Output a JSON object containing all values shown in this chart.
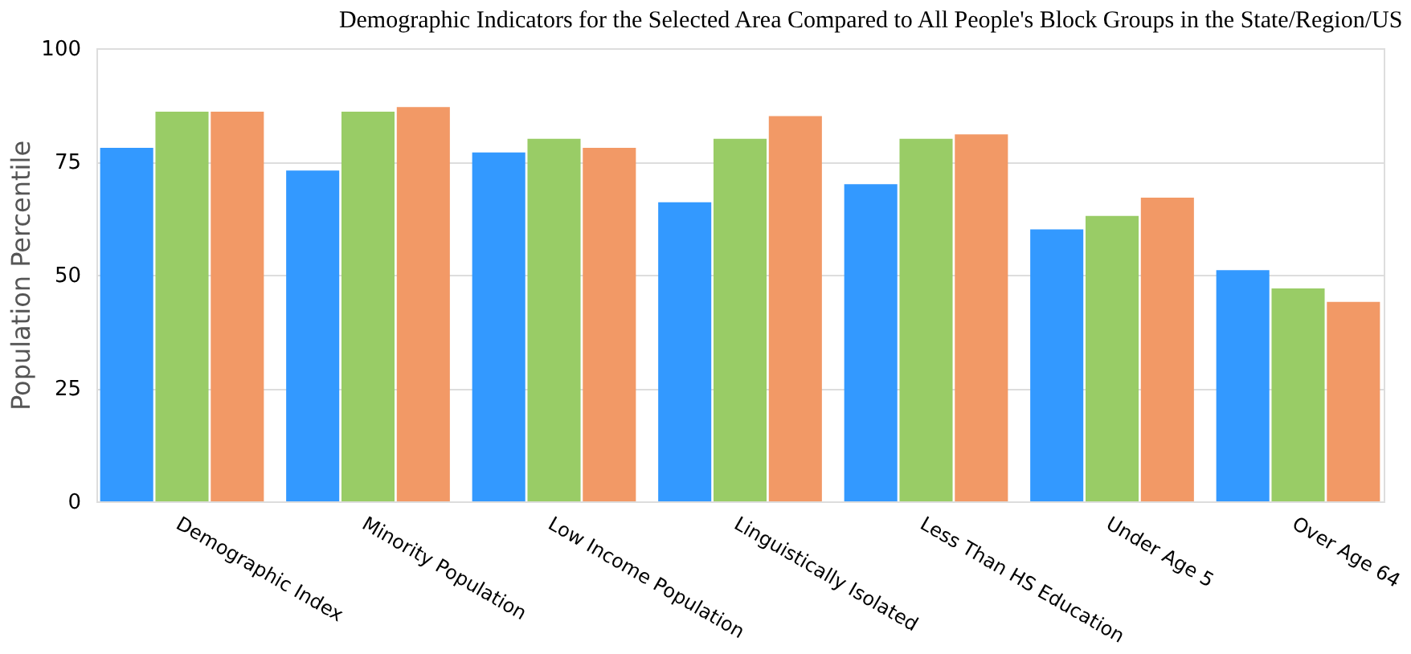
{
  "chart_data": {
    "type": "bar",
    "title": "Demographic Indicators for the Selected Area Compared to All People's Block Groups in the State/Region/US",
    "ylabel": "Population Percentile",
    "categories": [
      "Demographic Index",
      "Minority Population",
      "Low Income Population",
      "Linguistically Isolated",
      "Less Than HS Education",
      "Under Age 5",
      "Over Age 64"
    ],
    "series": [
      {
        "color": "#3399ff",
        "values": [
          78,
          73,
          77,
          66,
          70,
          60,
          51
        ]
      },
      {
        "color": "#99cc66",
        "values": [
          86,
          86,
          80,
          80,
          80,
          63,
          47
        ]
      },
      {
        "color": "#f29966",
        "values": [
          86,
          87,
          78,
          85,
          81,
          67,
          44
        ]
      }
    ],
    "ylim": [
      0,
      100
    ],
    "yticks": [
      0,
      25,
      50,
      75,
      100
    ],
    "grid": "y",
    "legend": false
  }
}
